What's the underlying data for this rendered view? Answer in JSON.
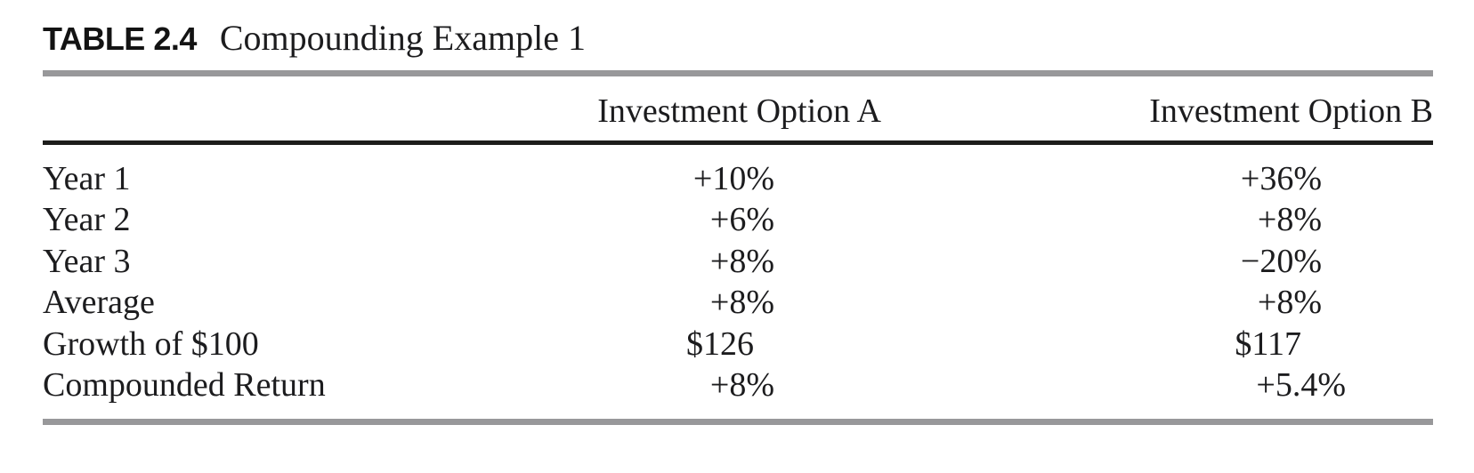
{
  "figure": {
    "label": "TABLE 2.4",
    "title": "Compounding Example 1"
  },
  "table": {
    "columns": {
      "label": "",
      "a": "Investment Option A",
      "b": "Investment Option B"
    },
    "rows": [
      {
        "label": "Year 1",
        "a": "+10%",
        "b": "+36%"
      },
      {
        "label": "Year 2",
        "a": "+6%",
        "b": "+8%"
      },
      {
        "label": "Year 3",
        "a": "+8%",
        "b": "−20%"
      },
      {
        "label": "Average",
        "a": "+8%",
        "b": "+8%"
      },
      {
        "label": "Growth of $100",
        "a": "$126",
        "b": "$117"
      },
      {
        "label": "Compounded Return",
        "a": "+8%",
        "b": "+5.4%"
      }
    ]
  },
  "colors": {
    "ink": "#1c1c1e",
    "caption_ink": "#131313",
    "gray_rule": "#98989a",
    "black_rule": "#1d1d1b",
    "background": "#ffffff"
  }
}
